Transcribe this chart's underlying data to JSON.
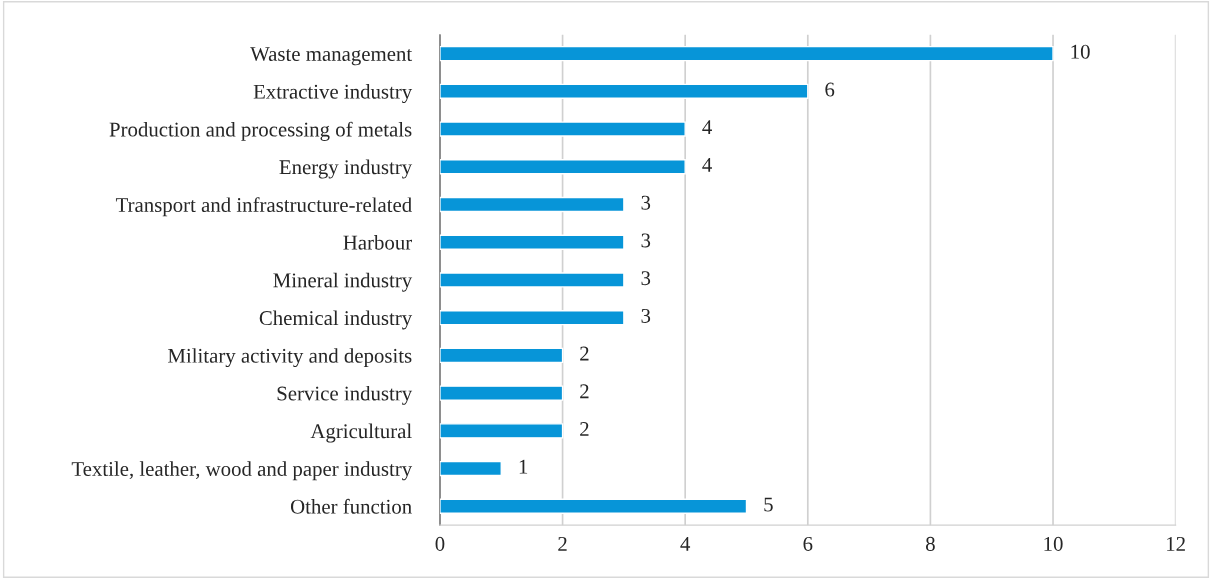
{
  "chart_data": {
    "type": "bar",
    "orientation": "horizontal",
    "categories": [
      "Waste management",
      "Extractive industry",
      "Production and processing of metals",
      "Energy industry",
      "Transport and infrastructure-related",
      "Harbour",
      "Mineral industry",
      "Chemical industry",
      "Military activity and deposits",
      "Service industry",
      "Agricultural",
      "Textile, leather, wood and paper industry",
      "Other function"
    ],
    "values": [
      10,
      6,
      4,
      4,
      3,
      3,
      3,
      3,
      2,
      2,
      2,
      1,
      5
    ],
    "color": "#0795d8",
    "xlim": [
      0,
      12
    ],
    "xticks": [
      0,
      2,
      4,
      6,
      8,
      10,
      12
    ],
    "grid": "x",
    "data_labels": true
  }
}
